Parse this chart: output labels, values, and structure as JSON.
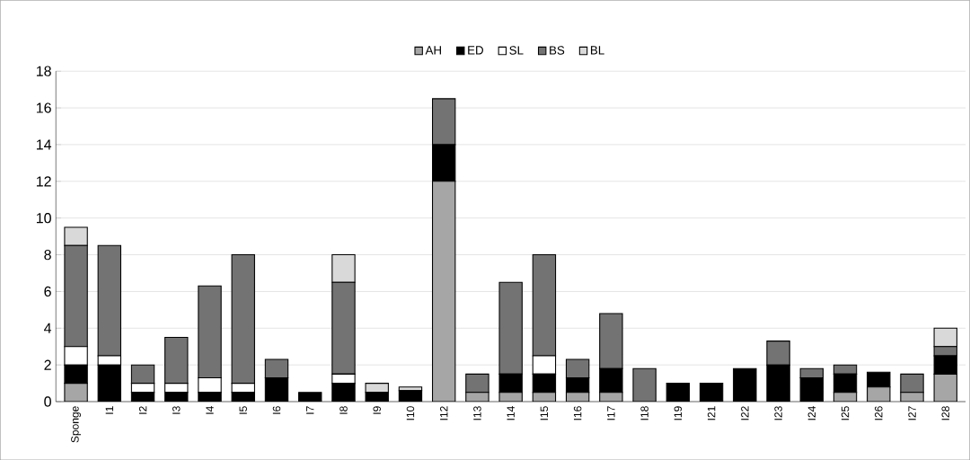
{
  "chart_data": {
    "type": "bar",
    "stacked": true,
    "categories": [
      "Sponge",
      "I1",
      "I2",
      "I3",
      "I4",
      "I5",
      "I6",
      "I7",
      "I8",
      "I9",
      "I10",
      "I12",
      "I13",
      "I14",
      "I15",
      "I16",
      "I17",
      "I18",
      "I19",
      "I21",
      "I22",
      "I23",
      "I24",
      "I25",
      "I26",
      "I27",
      "I28"
    ],
    "series": [
      {
        "name": "AH",
        "color": "#a6a6a6",
        "values": [
          1,
          0,
          0,
          0,
          0,
          0,
          0,
          0,
          0,
          0,
          0,
          12,
          0.5,
          0.5,
          0.5,
          0.5,
          0.5,
          0,
          0,
          0,
          0,
          0,
          0,
          0.5,
          0.8,
          0.5,
          1.5
        ]
      },
      {
        "name": "ED",
        "color": "#000000",
        "values": [
          1,
          2,
          0.5,
          0.5,
          0.5,
          0.5,
          1.3,
          0.5,
          1,
          0.5,
          0.6,
          2,
          0,
          1,
          1,
          0.8,
          1.3,
          0,
          1,
          1,
          1.8,
          2,
          1.3,
          1,
          0.8,
          0,
          1
        ]
      },
      {
        "name": "SL",
        "color": "#ffffff",
        "values": [
          1,
          0.5,
          0.5,
          0.5,
          0.8,
          0.5,
          0,
          0,
          0.5,
          0,
          0,
          0,
          0,
          0,
          1,
          0,
          0,
          0,
          0,
          0,
          0,
          0,
          0,
          0,
          0,
          0,
          0
        ]
      },
      {
        "name": "BS",
        "color": "#737373",
        "values": [
          5.5,
          6,
          1,
          2.5,
          5,
          7,
          1,
          0,
          5,
          0,
          0,
          2.5,
          1,
          5,
          5.5,
          1,
          3,
          1.8,
          0,
          0,
          0,
          1.3,
          0.5,
          0.5,
          0,
          1,
          0.5
        ]
      },
      {
        "name": "BL",
        "color": "#d9d9d9",
        "values": [
          1,
          0,
          0,
          0,
          0,
          0,
          0,
          0,
          1.5,
          0.5,
          0.2,
          0,
          0,
          0,
          0,
          0,
          0,
          0,
          0,
          0,
          0,
          0,
          0,
          0,
          0,
          0,
          1
        ]
      }
    ],
    "ylim": [
      0,
      18
    ],
    "yticks": [
      0,
      2,
      4,
      6,
      8,
      10,
      12,
      14,
      16,
      18
    ],
    "grid": "y",
    "legend": "top"
  }
}
